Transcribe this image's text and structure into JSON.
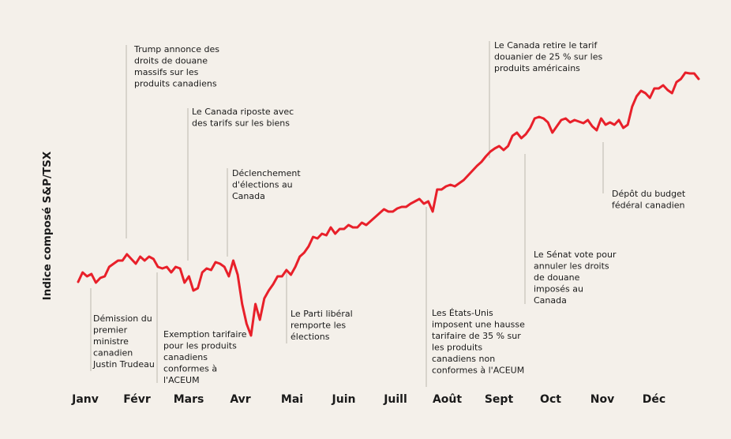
{
  "chart_data": {
    "type": "line",
    "y_label": "Indice composé S&P/TSX",
    "xlim": [
      0,
      12
    ],
    "xticks": [
      {
        "value": 0,
        "label": "Janv"
      },
      {
        "value": 1,
        "label": "Févr"
      },
      {
        "value": 2,
        "label": "Mars"
      },
      {
        "value": 3,
        "label": "Avr"
      },
      {
        "value": 4,
        "label": "Mai"
      },
      {
        "value": 5,
        "label": "Juin"
      },
      {
        "value": 6,
        "label": "Juill"
      },
      {
        "value": 7,
        "label": "Août"
      },
      {
        "value": 8,
        "label": "Sept"
      },
      {
        "value": 9,
        "label": "Oct"
      },
      {
        "value": 10,
        "label": "Nov"
      },
      {
        "value": 11,
        "label": "Déc"
      }
    ],
    "ylim": [
      22000,
      32350
    ],
    "color": "#e8202a",
    "values": [
      24775,
      25075,
      24950,
      25025,
      24750,
      24900,
      24950,
      25250,
      25350,
      25450,
      25450,
      25650,
      25500,
      25350,
      25575,
      25450,
      25575,
      25500,
      25250,
      25200,
      25250,
      25075,
      25250,
      25200,
      24750,
      24950,
      24500,
      24575,
      25075,
      25200,
      25150,
      25400,
      25350,
      25250,
      24950,
      25450,
      25000,
      24075,
      23450,
      23075,
      24075,
      23575,
      24250,
      24500,
      24700,
      24950,
      24950,
      25150,
      25000,
      25250,
      25575,
      25700,
      25900,
      26200,
      26150,
      26300,
      26250,
      26500,
      26300,
      26450,
      26450,
      26575,
      26500,
      26500,
      26650,
      26575,
      26700,
      26825,
      26950,
      27075,
      27000,
      27000,
      27100,
      27150,
      27150,
      27250,
      27325,
      27400,
      27250,
      27325,
      27000,
      27700,
      27700,
      27800,
      27850,
      27800,
      27900,
      28000,
      28150,
      28300,
      28450,
      28575,
      28750,
      28900,
      29000,
      29075,
      28950,
      29075,
      29400,
      29500,
      29325,
      29450,
      29650,
      29950,
      30000,
      29950,
      29825,
      29500,
      29700,
      29900,
      29950,
      29825,
      29900,
      29850,
      29800,
      29900,
      29700,
      29575,
      29950,
      29750,
      29825,
      29750,
      29900,
      29650,
      29750,
      30325,
      30650,
      30825,
      30750,
      30600,
      30900,
      30900,
      31000,
      30850,
      30750,
      31100,
      31200,
      31400,
      31375,
      31375,
      31200
    ],
    "annotations": [
      {
        "lines": [
          "Démission du",
          "premier",
          "ministre",
          "canadien",
          "Justin Trudeau"
        ]
      },
      {
        "lines": [
          "Trump annonce des",
          "droits de douane",
          "massifs sur les",
          "produits canadiens"
        ]
      },
      {
        "lines": [
          "Le Canada riposte avec",
          "des tarifs sur les biens"
        ]
      },
      {
        "lines": [
          "Exemption tarifaire",
          "pour les produits",
          "canadiens",
          "conformes à",
          "l'ACEUM"
        ]
      },
      {
        "lines": [
          "Déclenchement",
          "d'élections au",
          "Canada"
        ]
      },
      {
        "lines": [
          "Le Parti libéral",
          "remporte les",
          "élections"
        ]
      },
      {
        "lines": [
          "Les États-Unis",
          "imposent une hausse",
          "tarifaire de 35 % sur",
          "les produits",
          "canadiens non",
          "conformes à l'ACEUM"
        ]
      },
      {
        "lines": [
          "Le Canada retire le tarif",
          "douanier de 25 % sur les",
          "produits américains"
        ]
      },
      {
        "lines": [
          "Le Sénat vote pour",
          "annuler les droits",
          "de douane",
          "imposés au",
          "Canada"
        ]
      },
      {
        "lines": [
          "Dépôt du budget",
          "fédéral canadien"
        ]
      }
    ]
  }
}
